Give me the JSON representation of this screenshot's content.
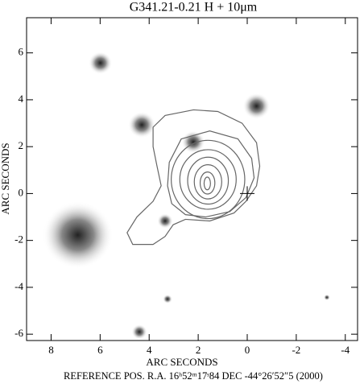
{
  "chart_data": {
    "type": "image",
    "title": "G341.21-0.21 H + 10μm",
    "xlabel": "ARC SECONDS",
    "ylabel": "ARC SECONDS",
    "footer": "REFERENCE POS.  R.A. 16ʰ52ᵐ17ˢ84  DEC  -44°26′52″5  (2000)",
    "xlim": [
      9.0,
      -4.5
    ],
    "ylim": [
      -6.27,
      7.5
    ],
    "xticks": [
      8,
      6,
      4,
      2,
      0,
      -2,
      -4
    ],
    "yticks": [
      -6,
      -4,
      -2,
      0,
      2,
      4,
      6
    ],
    "sources": [
      {
        "x": 5.99,
        "y": 5.57,
        "r": 0.3
      },
      {
        "x": 4.3,
        "y": 2.93,
        "r": 0.35
      },
      {
        "x": -0.38,
        "y": 3.73,
        "r": 0.35
      },
      {
        "x": 6.91,
        "y": -1.77,
        "r": 0.9
      },
      {
        "x": 3.35,
        "y": -1.17,
        "r": 0.2
      },
      {
        "x": 4.4,
        "y": -5.9,
        "r": 0.2
      },
      {
        "x": 3.25,
        "y": -4.5,
        "r": 0.12
      },
      {
        "x": -3.25,
        "y": -4.43,
        "r": 0.08
      },
      {
        "x": 2.2,
        "y": 2.2,
        "r": 0.3
      }
    ],
    "contours": [
      {
        "x": [
          3.84,
          3.35,
          2.19,
          1.2,
          0.21,
          -0.38,
          -0.51,
          -0.38,
          0.05,
          0.54,
          1.53,
          2.52,
          3.02,
          3.35,
          3.84,
          4.67,
          4.9,
          4.5,
          3.84,
          3.51,
          3.68,
          3.84
        ],
        "y": [
          2.83,
          3.33,
          3.57,
          3.5,
          3.0,
          2.17,
          1.17,
          0.33,
          -0.33,
          -0.83,
          -1.17,
          -1.1,
          -1.33,
          -1.83,
          -2.17,
          -2.17,
          -1.67,
          -1.0,
          -0.33,
          0.33,
          1.17,
          2.0
        ]
      },
      {
        "x": [
          2.69,
          1.53,
          0.38,
          -0.18,
          -0.28,
          0.05,
          0.71,
          1.7,
          2.52,
          3.08,
          3.25,
          3.18
        ],
        "y": [
          2.33,
          2.67,
          2.33,
          1.5,
          0.67,
          -0.17,
          -0.77,
          -1.0,
          -0.9,
          -0.43,
          0.33,
          1.33
        ]
      }
    ],
    "ellipses": [
      {
        "cx": 1.6,
        "cy": 0.6,
        "rx": 1.5,
        "ry": 1.67
      },
      {
        "cx": 1.6,
        "cy": 0.6,
        "rx": 1.15,
        "ry": 1.27
      },
      {
        "cx": 1.6,
        "cy": 0.55,
        "rx": 0.83,
        "ry": 1.0
      },
      {
        "cx": 1.6,
        "cy": 0.5,
        "rx": 0.56,
        "ry": 0.73
      },
      {
        "cx": 1.62,
        "cy": 0.45,
        "rx": 0.3,
        "ry": 0.47
      },
      {
        "cx": 1.63,
        "cy": 0.43,
        "rx": 0.13,
        "ry": 0.27
      }
    ],
    "color": "#666666"
  }
}
